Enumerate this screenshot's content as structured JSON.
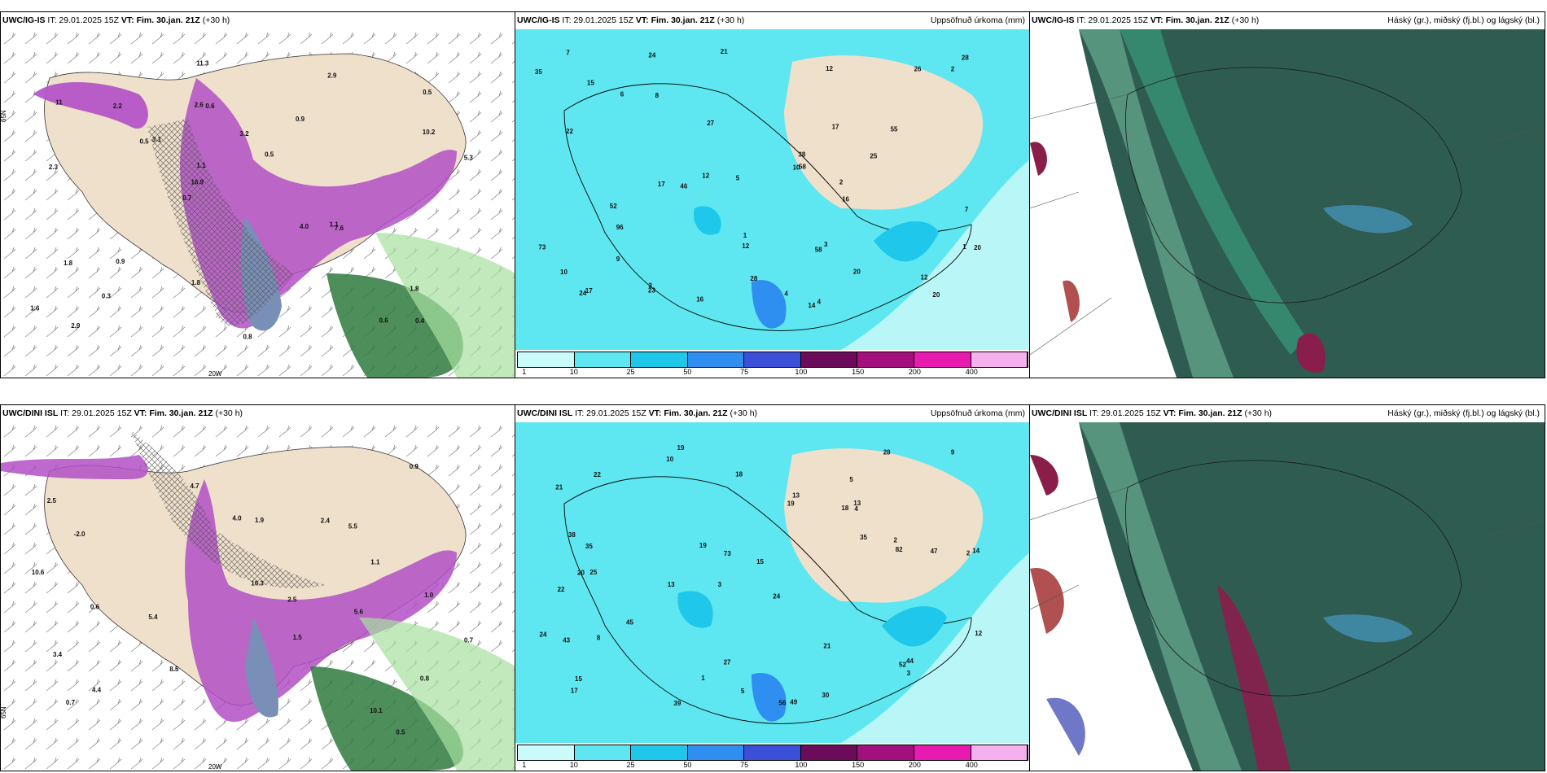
{
  "panels": {
    "p1": {
      "model": "UWC/IG-IS",
      "it": "IT: 29.01.2025 15Z",
      "vt": "VT: Fim. 30.jan. 21Z",
      "lead": "(+30 h)",
      "right": "",
      "lat_label": "65N",
      "lon_label": "20W"
    },
    "p2": {
      "model": "UWC/IG-IS",
      "it": "IT: 29.01.2025 15Z",
      "vt": "VT: Fim. 30.jan. 21Z",
      "lead": "(+30 h)",
      "right": "Uppsöfnuð úrkoma (mm)"
    },
    "p3": {
      "model": "UWC/IG-IS",
      "it": "IT: 29.01.2025 15Z",
      "vt": "VT: Fim. 30.jan. 21Z",
      "lead": "(+30 h)",
      "right": "Háský (gr.), miðský (fj.bl.) og lágský (bl.)"
    },
    "p4": {
      "model": "UWC/DINI ISL",
      "it": "IT: 29.01.2025 15Z",
      "vt": "VT: Fim. 30.jan. 21Z",
      "lead": "(+30 h)",
      "right": "",
      "lat_label": "65N",
      "lon_label": "20W"
    },
    "p5": {
      "model": "UWC/DINI ISL",
      "it": "IT: 29.01.2025 15Z",
      "vt": "VT: Fim. 30.jan. 21Z",
      "lead": "(+30 h)",
      "right": "Uppsöfnuð úrkoma (mm)"
    },
    "p6": {
      "model": "UWC/DINI ISL",
      "it": "IT: 29.01.2025 15Z",
      "vt": "VT: Fim. 30.jan. 21Z",
      "lead": "(+30 h)",
      "right": "Háský (gr.), miðský (fj.bl.) og lágský (bl.)"
    }
  },
  "precip_scale": {
    "ticks": [
      "1",
      "10",
      "25",
      "50",
      "75",
      "100",
      "150",
      "200",
      "400"
    ],
    "colors": [
      "#c9fbfb",
      "#5ee7f0",
      "#1fc7ea",
      "#2e8ff0",
      "#3b4fd8",
      "#6b0b5a",
      "#a3107d",
      "#e81bb0",
      "#f5b0ee"
    ]
  },
  "colors": {
    "land": "#efe0cc",
    "sea_precip": "#b8f6f8",
    "cloud_low": "#2f5c50",
    "snow_purple": "#b14fc6",
    "rain_green": "#2f7a3e"
  },
  "labels": {
    "p1": [
      "0.4",
      "2.3",
      "0.5",
      "0.7",
      "0.9",
      "2.9",
      "2.6",
      "3.2",
      "1.8",
      "3.1",
      "1.6",
      "0.3",
      "0.6",
      "0.5",
      "7.6",
      "11",
      "11.3",
      "5.3",
      "4.0",
      "10.2",
      "16.9",
      "1.8",
      "1.1",
      "2.2",
      "2.9",
      "0.9",
      "0.6",
      "1.8",
      "1.1",
      "0.8",
      "0.5"
    ],
    "p2": [
      "16",
      "14",
      "3",
      "20",
      "24",
      "15",
      "17",
      "20",
      "21",
      "27",
      "26",
      "28",
      "12",
      "12",
      "12",
      "10",
      "22",
      "23",
      "46",
      "35",
      "58",
      "28",
      "38",
      "24",
      "55",
      "52",
      "73",
      "96",
      "7",
      "16",
      "5",
      "4",
      "1",
      "2",
      "9",
      "2",
      "1",
      "10",
      "17",
      "12",
      "58",
      "25",
      "20",
      "17",
      "8",
      "3",
      "7",
      "4",
      "6"
    ],
    "p4": [
      "0.5",
      "0.6",
      "1.5",
      "2.5",
      "0.8",
      "-2.0",
      "4.4",
      "5.4",
      "5.5",
      "4.0",
      "2.4",
      "10.1",
      "8.5",
      "4.7",
      "2.5",
      "3.4",
      "5.6",
      "16.3",
      "10.6",
      "0.7",
      "0.9",
      "1.9",
      "1.1",
      "0.7",
      "1.0"
    ],
    "p5": [
      "19",
      "5",
      "2",
      "3",
      "24",
      "25",
      "21",
      "18",
      "22",
      "19",
      "15",
      "17",
      "10",
      "13",
      "56",
      "49",
      "27",
      "28",
      "35",
      "45",
      "35",
      "20",
      "14",
      "47",
      "24",
      "38",
      "73",
      "82",
      "44",
      "43",
      "52",
      "13",
      "8",
      "19",
      "21",
      "12",
      "2",
      "1",
      "9",
      "18",
      "15",
      "39",
      "30",
      "22",
      "5",
      "4",
      "3",
      "13"
    ]
  }
}
